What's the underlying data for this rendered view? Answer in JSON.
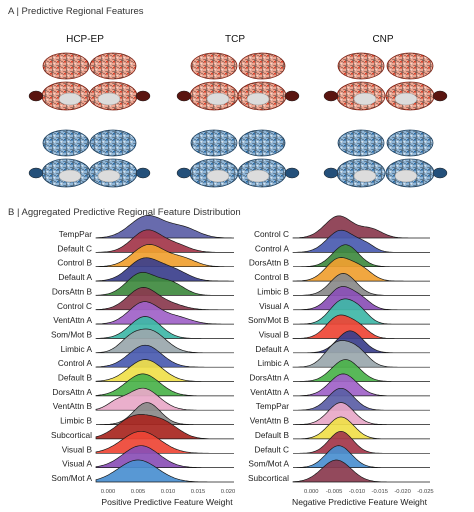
{
  "panel_a": {
    "label": "A | Predictive Regional Features",
    "columns": [
      "HCP-EP",
      "TCP",
      "CNP"
    ],
    "colors": {
      "positive_fill": "#e35a3a",
      "positive_light": "#f4b8a6",
      "negative_fill": "#4a86b8",
      "negative_light": "#b6cfe4",
      "outline": "#1a1a1a"
    }
  },
  "panel_b": {
    "label": "B | Aggregated Predictive Regional Feature Distribution"
  },
  "chart_data": [
    {
      "type": "ridgeline",
      "xlabel": "Positive Predictive Feature Weight",
      "x_ticks": [
        "0.000",
        "0.005",
        "0.010",
        "0.015",
        "0.020"
      ],
      "xlim": [
        -0.002,
        0.021
      ],
      "categories": [
        "TempPar",
        "Default C",
        "Control B",
        "Default A",
        "DorsAttn B",
        "Control C",
        "VentAttn A",
        "Som/Mot B",
        "Limbic A",
        "Control A",
        "Default B",
        "DorsAttn A",
        "VentAttn B",
        "Limbic B",
        "Subcortical",
        "Visual B",
        "Visual A",
        "Som/Mot A"
      ],
      "series": [
        {
          "category": "TempPar",
          "color": "#5b5ea6",
          "peaks": [
            [
              0.0065,
              0.0028,
              1.0
            ],
            [
              0.0125,
              0.0025,
              0.45
            ]
          ]
        },
        {
          "category": "Default C",
          "color": "#a3364a",
          "peaks": [
            [
              0.0065,
              0.0025,
              1.0
            ],
            [
              0.0115,
              0.0022,
              0.3
            ]
          ]
        },
        {
          "category": "Control B",
          "color": "#f0a030",
          "peaks": [
            [
              0.0068,
              0.0027,
              1.0
            ],
            [
              0.0125,
              0.0022,
              0.35
            ]
          ]
        },
        {
          "category": "Default A",
          "color": "#3b3f8c",
          "peaks": [
            [
              0.006,
              0.0026,
              1.0
            ],
            [
              0.011,
              0.0024,
              0.45
            ]
          ]
        },
        {
          "category": "DorsAttn B",
          "color": "#3f8a3f",
          "peaks": [
            [
              0.0055,
              0.0024,
              1.0
            ],
            [
              0.0105,
              0.0022,
              0.55
            ]
          ]
        },
        {
          "category": "Control C",
          "color": "#8a3a4e",
          "peaks": [
            [
              0.0058,
              0.0025,
              1.0
            ],
            [
              0.0108,
              0.0022,
              0.2
            ]
          ]
        },
        {
          "category": "VentAttn A",
          "color": "#a062c8",
          "peaks": [
            [
              0.006,
              0.0025,
              1.0
            ],
            [
              0.0115,
              0.0024,
              0.3
            ]
          ]
        },
        {
          "category": "Som/Mot B",
          "color": "#3fb7a7",
          "peaks": [
            [
              0.0062,
              0.0025,
              1.0
            ]
          ]
        },
        {
          "category": "Limbic A",
          "color": "#9aa7ad",
          "peaks": [
            [
              0.007,
              0.0026,
              1.0
            ],
            [
              0.0035,
              0.0018,
              0.4
            ]
          ]
        },
        {
          "category": "Control A",
          "color": "#4a5bb0",
          "peaks": [
            [
              0.0062,
              0.0027,
              1.0
            ]
          ]
        },
        {
          "category": "Default B",
          "color": "#f0e04a",
          "peaks": [
            [
              0.0062,
              0.0028,
              1.0
            ]
          ]
        },
        {
          "category": "DorsAttn A",
          "color": "#4ab24a",
          "peaks": [
            [
              0.0058,
              0.0028,
              1.0
            ]
          ]
        },
        {
          "category": "VentAttn B",
          "color": "#e8a8c8",
          "peaks": [
            [
              0.0058,
              0.0027,
              1.0
            ],
            [
              0.0012,
              0.0015,
              0.25
            ]
          ]
        },
        {
          "category": "Limbic B",
          "color": "#8a8a8a",
          "peaks": [
            [
              0.0065,
              0.0022,
              1.0
            ]
          ]
        },
        {
          "category": "Subcortical",
          "color": "#a8261f",
          "peaks": [
            [
              0.0045,
              0.003,
              1.0
            ],
            [
              0.0095,
              0.0025,
              0.6
            ]
          ]
        },
        {
          "category": "Visual B",
          "color": "#ee4535",
          "peaks": [
            [
              0.0055,
              0.0032,
              1.0
            ]
          ]
        },
        {
          "category": "Visual A",
          "color": "#8a4fb6",
          "peaks": [
            [
              0.0055,
              0.003,
              1.0
            ]
          ]
        },
        {
          "category": "Som/Mot A",
          "color": "#4a8fd0",
          "peaks": [
            [
              0.005,
              0.0033,
              1.0
            ]
          ]
        }
      ]
    },
    {
      "type": "ridgeline",
      "xlabel": "Negative Predictive Feature Weight",
      "x_ticks": [
        "0.000",
        "-0.005",
        "-0.010",
        "-0.015",
        "-0.020",
        "-0.025"
      ],
      "xlim": [
        0.004,
        -0.026
      ],
      "categories": [
        "Control C",
        "Control A",
        "DorsAttn B",
        "Control B",
        "Limbic B",
        "Visual A",
        "Som/Mot B",
        "Visual B",
        "Default A",
        "Limbic A",
        "DorsAttn A",
        "VentAttn A",
        "TempPar",
        "VentAttn B",
        "Default B",
        "Default C",
        "Som/Mot A",
        "Subcortical"
      ],
      "series": [
        {
          "category": "Control C",
          "color": "#8a3a4e",
          "peaks": [
            [
              -0.006,
              0.003,
              1.0
            ],
            [
              -0.013,
              0.0025,
              0.4
            ]
          ]
        },
        {
          "category": "Control A",
          "color": "#4a5bb0",
          "peaks": [
            [
              -0.0065,
              0.003,
              1.0
            ],
            [
              -0.012,
              0.002,
              0.3
            ]
          ]
        },
        {
          "category": "DorsAttn B",
          "color": "#3f8a3f",
          "peaks": [
            [
              -0.0075,
              0.0028,
              1.0
            ]
          ]
        },
        {
          "category": "Control B",
          "color": "#f0a030",
          "peaks": [
            [
              -0.006,
              0.0028,
              1.0
            ],
            [
              -0.011,
              0.0024,
              0.5
            ]
          ]
        },
        {
          "category": "Limbic B",
          "color": "#8a8a8a",
          "peaks": [
            [
              -0.007,
              0.0028,
              1.0
            ]
          ]
        },
        {
          "category": "Visual A",
          "color": "#8a4fb6",
          "peaks": [
            [
              -0.0065,
              0.0027,
              1.0
            ],
            [
              -0.011,
              0.0022,
              0.4
            ]
          ]
        },
        {
          "category": "Som/Mot B",
          "color": "#3fb7a7",
          "peaks": [
            [
              -0.0065,
              0.0026,
              1.0
            ],
            [
              -0.0105,
              0.0022,
              0.55
            ]
          ]
        },
        {
          "category": "Visual B",
          "color": "#ee4535",
          "peaks": [
            [
              -0.006,
              0.0027,
              1.0
            ],
            [
              -0.0105,
              0.0022,
              0.45
            ]
          ]
        },
        {
          "category": "Default A",
          "color": "#3b3f8c",
          "peaks": [
            [
              -0.0085,
              0.0028,
              1.0
            ]
          ]
        },
        {
          "category": "Limbic A",
          "color": "#9aa7ad",
          "peaks": [
            [
              -0.0055,
              0.0026,
              1.0
            ],
            [
              -0.01,
              0.0025,
              0.75
            ]
          ]
        },
        {
          "category": "DorsAttn A",
          "color": "#4ab24a",
          "peaks": [
            [
              -0.0075,
              0.003,
              1.0
            ]
          ]
        },
        {
          "category": "VentAttn A",
          "color": "#a062c8",
          "peaks": [
            [
              -0.007,
              0.003,
              1.0
            ]
          ]
        },
        {
          "category": "TempPar",
          "color": "#5b5ea6",
          "peaks": [
            [
              -0.0065,
              0.0028,
              1.0
            ]
          ]
        },
        {
          "category": "VentAttn B",
          "color": "#e8a8c8",
          "peaks": [
            [
              -0.0065,
              0.0028,
              1.0
            ]
          ]
        },
        {
          "category": "Default B",
          "color": "#f0e04a",
          "peaks": [
            [
              -0.0065,
              0.0028,
              1.0
            ]
          ]
        },
        {
          "category": "Default C",
          "color": "#a3364a",
          "peaks": [
            [
              -0.0065,
              0.0026,
              1.0
            ]
          ]
        },
        {
          "category": "Som/Mot A",
          "color": "#4a8fd0",
          "peaks": [
            [
              -0.006,
              0.0028,
              1.0
            ]
          ]
        },
        {
          "category": "Subcortical",
          "color": "#8a3a4e",
          "peaks": [
            [
              -0.0055,
              0.0032,
              1.0
            ]
          ]
        }
      ]
    }
  ]
}
